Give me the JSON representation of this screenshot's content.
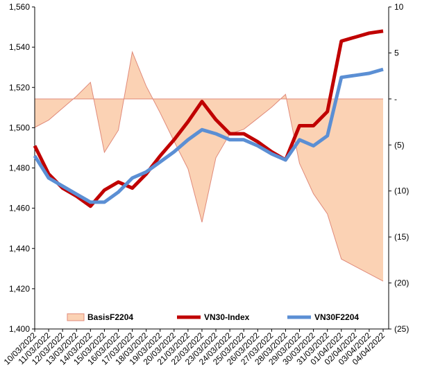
{
  "chart_data": {
    "type": "line",
    "categories": [
      "10/03/2022",
      "11/03/2022",
      "12/03/2022",
      "13/03/2022",
      "14/03/2022",
      "15/03/2022",
      "16/03/2022",
      "17/03/2022",
      "18/03/2022",
      "19/03/2022",
      "20/03/2022",
      "21/03/2022",
      "22/03/2022",
      "23/03/2022",
      "24/03/2022",
      "25/03/2022",
      "26/03/2022",
      "27/03/2022",
      "28/03/2022",
      "29/03/2022",
      "30/03/2022",
      "31/03/2022",
      "01/04/2022",
      "02/04/2022",
      "03/04/2022",
      "04/04/2022"
    ],
    "x_label_positions": [
      0,
      1,
      2,
      3,
      4,
      5,
      6,
      7,
      8,
      9,
      10,
      11,
      12,
      13,
      14,
      15,
      16,
      17,
      18,
      19,
      20,
      21,
      22,
      23,
      24,
      25
    ],
    "left_axis": {
      "ylim": [
        1400,
        1560
      ],
      "ticks": [
        "1,400",
        "1,420",
        "1,440",
        "1,460",
        "1,480",
        "1,500",
        "1,520",
        "1,540",
        "1,560"
      ],
      "tick_values": [
        1400,
        1420,
        1440,
        1460,
        1480,
        1500,
        1520,
        1540,
        1560
      ]
    },
    "right_axis": {
      "ylim": [
        -25,
        10
      ],
      "ticks": [
        "(25)",
        "(20)",
        "(15)",
        "(10)",
        "(5)",
        "-",
        "5",
        "10"
      ],
      "tick_values": [
        -25,
        -20,
        -15,
        -10,
        -5,
        0,
        5,
        10
      ]
    },
    "series": [
      {
        "name": "BasisF2204",
        "type": "area",
        "axis": "right",
        "color": "#fbd2b4",
        "stroke": "#e08a7a",
        "x": [
          0,
          1,
          2,
          3,
          4,
          5,
          6,
          7,
          8,
          9,
          10,
          11,
          12,
          13,
          14,
          15,
          16,
          17,
          18,
          19,
          20,
          21,
          22,
          23,
          24,
          25
        ],
        "values": [
          -3.1,
          -2.3,
          -1.0,
          0.3,
          1.8,
          -5.8,
          -3.4,
          5.1,
          1.4,
          -1.5,
          -4.6,
          -7.6,
          -13.4,
          -6.4,
          -3.8,
          -3.3,
          -2.1,
          -0.9,
          0.5,
          -7.0,
          -10.3,
          -12.5,
          -17.4,
          -18.2,
          -19.0,
          -19.8
        ]
      },
      {
        "name": "VN30-Index",
        "type": "line",
        "axis": "left",
        "color": "#c00000",
        "x": [
          0,
          1,
          2,
          3,
          4,
          5,
          6,
          7,
          8,
          9,
          10,
          11,
          12,
          13,
          14,
          15,
          16,
          17,
          18,
          19,
          20,
          21,
          22,
          23,
          24,
          25
        ],
        "values": [
          1491,
          1477,
          1470,
          1466,
          1461,
          1469,
          1473,
          1470,
          1477,
          1486,
          1494,
          1503,
          1513,
          1504,
          1497,
          1497,
          1493,
          1488,
          1484,
          1501,
          1501,
          1508,
          1543,
          1545,
          1547,
          1548
        ]
      },
      {
        "name": "VN30F2204",
        "type": "line",
        "axis": "left",
        "color": "#5b8fd4",
        "x": [
          0,
          1,
          2,
          3,
          4,
          5,
          6,
          7,
          8,
          9,
          10,
          11,
          12,
          13,
          14,
          15,
          16,
          17,
          18,
          19,
          20,
          21,
          22,
          23,
          24,
          25
        ],
        "values": [
          1486,
          1475,
          1471,
          1467,
          1463,
          1463,
          1468,
          1475,
          1478,
          1483,
          1488,
          1494,
          1499,
          1497,
          1494,
          1494,
          1491,
          1487,
          1484,
          1494,
          1491,
          1496,
          1525,
          1526,
          1527,
          1529
        ]
      }
    ],
    "legend": {
      "position": "bottom-inside",
      "entries": [
        "BasisF2204",
        "VN30-Index",
        "VN30F2204"
      ]
    },
    "grid": false
  }
}
